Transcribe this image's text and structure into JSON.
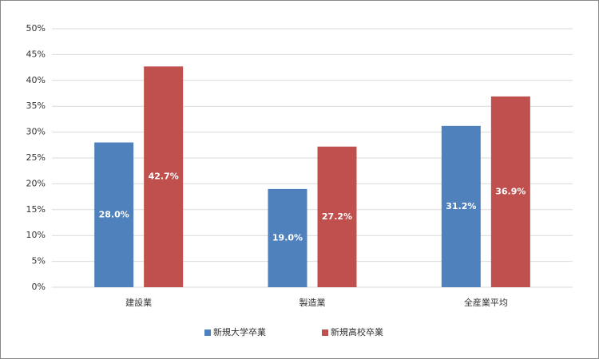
{
  "chart_data": {
    "type": "bar",
    "categories": [
      "建設業",
      "製造業",
      "全産業平均"
    ],
    "series": [
      {
        "name": "新規大学卒業",
        "color": "#4f81bd",
        "values": [
          28.0,
          19.0,
          31.2
        ],
        "value_labels": [
          "28.0%",
          "19.0%",
          "31.2%"
        ]
      },
      {
        "name": "新規高校卒業",
        "color": "#c0504d",
        "values": [
          42.7,
          27.2,
          36.9
        ],
        "value_labels": [
          "42.7%",
          "27.2%",
          "36.9%"
        ]
      }
    ],
    "ylim": [
      0,
      50
    ],
    "yticks": [
      {
        "value": 0,
        "label": "0%"
      },
      {
        "value": 5,
        "label": "5%"
      },
      {
        "value": 10,
        "label": "10%"
      },
      {
        "value": 15,
        "label": "15%"
      },
      {
        "value": 20,
        "label": "20%"
      },
      {
        "value": 25,
        "label": "25%"
      },
      {
        "value": 30,
        "label": "30%"
      },
      {
        "value": 35,
        "label": "35%"
      },
      {
        "value": 40,
        "label": "40%"
      },
      {
        "value": 45,
        "label": "45%"
      },
      {
        "value": 50,
        "label": "50%"
      }
    ],
    "grid": true,
    "legend": "bottom"
  }
}
